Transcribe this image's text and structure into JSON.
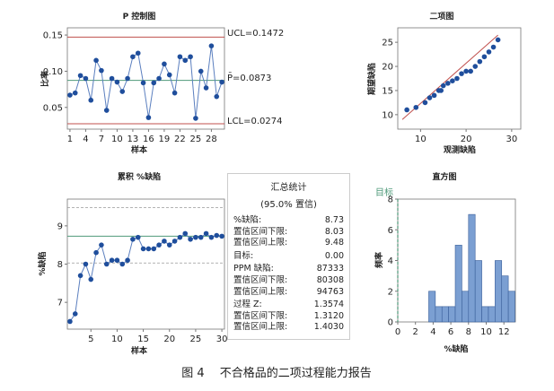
{
  "caption": "图 4　 不合格品的二项过程能力报告",
  "summary": {
    "title": "汇总统计",
    "subtitle": "(95.0% 置信)",
    "rows": [
      {
        "label": "%缺陷:",
        "value": "8.73"
      },
      {
        "label": "置信区间下限:",
        "value": "8.03"
      },
      {
        "label": "置信区间上限:",
        "value": "9.48"
      },
      {
        "label": "目标:",
        "value": "0.00"
      },
      {
        "label": "PPM 缺陷:",
        "value": "87333"
      },
      {
        "label": "置信区间下限:",
        "value": "80308"
      },
      {
        "label": "置信区间上限:",
        "value": "94763"
      },
      {
        "label": "过程 Z:",
        "value": "1.3574"
      },
      {
        "label": "置信区间下限:",
        "value": "1.3120"
      },
      {
        "label": "置信区间上限:",
        "value": "1.4030"
      }
    ]
  },
  "chart_data": [
    {
      "type": "line",
      "title": "P 控制图",
      "xlabel": "样本",
      "ylabel": "比率",
      "xticks": [
        1,
        4,
        7,
        10,
        13,
        16,
        19,
        22,
        25,
        28
      ],
      "yticks": [
        "0.05",
        "0.10",
        "0.15"
      ],
      "xlim": [
        0.5,
        30.5
      ],
      "ylim": [
        0.02,
        0.16
      ],
      "x": [
        1,
        2,
        3,
        4,
        5,
        6,
        7,
        8,
        9,
        10,
        11,
        12,
        13,
        14,
        15,
        16,
        17,
        18,
        19,
        20,
        21,
        22,
        23,
        24,
        25,
        26,
        27,
        28,
        29,
        30
      ],
      "values": [
        0.067,
        0.07,
        0.094,
        0.09,
        0.06,
        0.115,
        0.101,
        0.046,
        0.09,
        0.085,
        0.072,
        0.09,
        0.12,
        0.125,
        0.084,
        0.036,
        0.084,
        0.09,
        0.11,
        0.095,
        0.07,
        0.12,
        0.115,
        0.12,
        0.035,
        0.1,
        0.077,
        0.135,
        0.065,
        0.085
      ],
      "center": 0.0873,
      "ucl": 0.1472,
      "lcl": 0.0274,
      "labels": {
        "ucl": "UCL=0.1472",
        "center": "P̄=0.0873",
        "lcl": "LCL=0.0274"
      },
      "colors": {
        "points": "#1f4e9c",
        "limits": "#c0504d",
        "center": "#4f9a7a"
      }
    },
    {
      "type": "scatter",
      "title": "二项图",
      "xlabel": "观测缺陷",
      "ylabel": "期望缺陷",
      "xticks": [
        10,
        20,
        30
      ],
      "yticks": [
        10,
        15,
        20,
        25
      ],
      "xlim": [
        5,
        32
      ],
      "ylim": [
        7,
        28
      ],
      "x": [
        7,
        9,
        11,
        12,
        13,
        14,
        14.5,
        15,
        16,
        17,
        18,
        19,
        20,
        21,
        22,
        23,
        24,
        25,
        26,
        27
      ],
      "y": [
        11,
        11.5,
        12.5,
        13.5,
        14,
        15,
        15,
        16,
        16.5,
        17,
        17.5,
        18.5,
        19,
        19,
        20,
        21,
        22,
        23,
        24,
        25.5
      ],
      "reference_line": [
        [
          6,
          9
        ],
        [
          27,
          26.5
        ]
      ],
      "colors": {
        "points": "#1f4e9c",
        "line": "#c0504d"
      }
    },
    {
      "type": "line",
      "title": "累积 %缺陷",
      "xlabel": "样本",
      "ylabel": "%缺陷",
      "xticks": [
        5,
        10,
        15,
        20,
        25,
        30
      ],
      "yticks": [
        7,
        8,
        9
      ],
      "xlim": [
        0.5,
        30.5
      ],
      "ylim": [
        6.3,
        9.7
      ],
      "x": [
        1,
        2,
        3,
        4,
        5,
        6,
        7,
        8,
        9,
        10,
        11,
        12,
        13,
        14,
        15,
        16,
        17,
        18,
        19,
        20,
        21,
        22,
        23,
        24,
        25,
        26,
        27,
        28,
        29,
        30
      ],
      "values": [
        6.5,
        6.7,
        7.7,
        8.0,
        7.6,
        8.3,
        8.5,
        8.0,
        8.1,
        8.1,
        8.0,
        8.1,
        8.65,
        8.7,
        8.4,
        8.4,
        8.4,
        8.5,
        8.6,
        8.5,
        8.6,
        8.7,
        8.8,
        8.65,
        8.7,
        8.7,
        8.8,
        8.7,
        8.75,
        8.73
      ],
      "center": 8.73,
      "ci": [
        8.03,
        9.48
      ],
      "colors": {
        "points": "#1f4e9c",
        "center": "#4f9a7a",
        "ci": "#999999"
      }
    },
    {
      "type": "bar",
      "title": "直方图",
      "xlabel": "%缺陷",
      "ylabel": "频率",
      "legend": "目标",
      "xticks": [
        0,
        2,
        4,
        6,
        8,
        10,
        12
      ],
      "yticks": [
        0,
        2,
        4,
        6,
        8
      ],
      "xlim": [
        0,
        13.3
      ],
      "ylim": [
        0,
        8
      ],
      "bin_edges": [
        3.5,
        4.25,
        5,
        5.75,
        6.5,
        7.25,
        8,
        8.75,
        9.5,
        10.25,
        11,
        11.75,
        12.5,
        13.25
      ],
      "values": [
        2,
        1,
        1,
        1,
        5,
        2,
        7,
        4,
        1,
        1,
        4,
        3,
        2
      ],
      "target": 0,
      "colors": {
        "bars": "#7b9fd2",
        "edge": "#3a5f9a",
        "target": "#4f9a7a"
      }
    }
  ]
}
